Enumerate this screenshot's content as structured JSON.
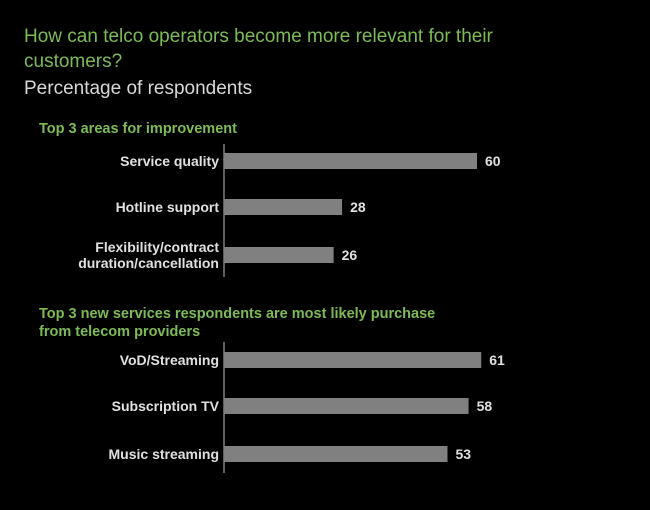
{
  "title": "How can telco operators become more relevant for their customers?",
  "subtitle": "Percentage of respondents",
  "colors": {
    "title": "#7dbb57",
    "bar": "#808080",
    "text": "#e0e0e0",
    "background": "#000000"
  },
  "chart_data": [
    {
      "type": "bar",
      "orientation": "horizontal",
      "title": "Top 3 areas for improvement",
      "categories": [
        "Service quality",
        "Hotline support",
        "Flexibility/contract duration/cancellation"
      ],
      "category_lines": [
        [
          "Service quality"
        ],
        [
          "Hotline support"
        ],
        [
          "Flexibility/contract",
          "duration/cancellation"
        ]
      ],
      "values": [
        60,
        28,
        26
      ],
      "xlim": [
        0,
        60
      ],
      "grid": false
    },
    {
      "type": "bar",
      "orientation": "horizontal",
      "title": "Top 3 new services respondents are most likely purchase from telecom providers",
      "title_lines": [
        "Top 3 new services respondents are most likely purchase",
        "from telecom providers"
      ],
      "categories": [
        "VoD/Streaming",
        "Subscription TV",
        "Music streaming"
      ],
      "category_lines": [
        [
          "VoD/Streaming"
        ],
        [
          "Subscription TV"
        ],
        [
          "Music streaming"
        ]
      ],
      "values": [
        61,
        58,
        53
      ],
      "xlim": [
        0,
        60
      ],
      "grid": false
    }
  ]
}
